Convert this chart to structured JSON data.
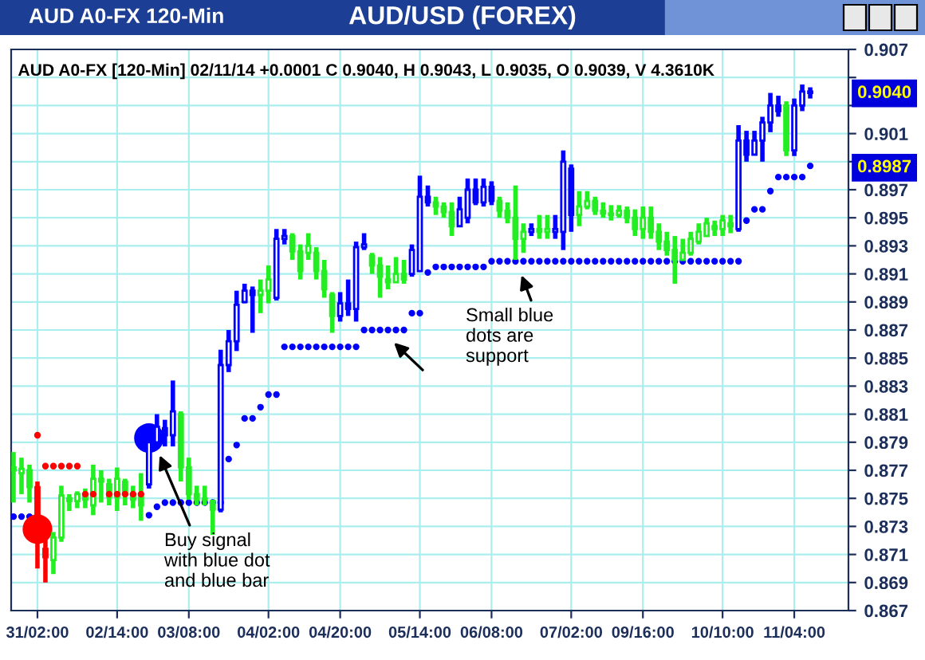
{
  "chart_data": {
    "type": "candlestick",
    "title": "AUD/USD (FOREX)",
    "subtitle": "AUD A0-FX 120-Min",
    "categories": [
      null,
      null,
      null,
      "31/02:00",
      null,
      null,
      null,
      null,
      null,
      null,
      null,
      null,
      null,
      "02/14:00",
      null,
      null,
      null,
      null,
      null,
      null,
      null,
      null,
      "03/08:00",
      null,
      null,
      null,
      null,
      null,
      null,
      null,
      null,
      null,
      "04/02:00",
      null,
      null,
      null,
      null,
      null,
      null,
      null,
      null,
      "04/20:00",
      null,
      null,
      null,
      null,
      null,
      null,
      null,
      null,
      null,
      "05/14:00",
      null,
      null,
      null,
      null,
      null,
      null,
      null,
      null,
      "06/08:00",
      null,
      null,
      null,
      null,
      null,
      null,
      null,
      null,
      null,
      "07/02:00",
      null,
      null,
      null,
      null,
      null,
      null,
      null,
      null,
      "09/16:00",
      null,
      null,
      null,
      null,
      null,
      null,
      null,
      null,
      null,
      "10/10:00",
      null,
      null,
      null,
      null,
      null,
      null,
      null,
      null,
      "11/04:00",
      null,
      null
    ],
    "ohlc": [
      [
        0.8772,
        0.8783,
        0.8747,
        0.877
      ],
      [
        0.8768,
        0.8779,
        0.8753,
        0.8771
      ],
      [
        0.877,
        0.8774,
        0.8747,
        0.8758
      ],
      [
        0.8758,
        0.8762,
        0.87,
        0.8728
      ],
      [
        0.8714,
        0.8721,
        0.869,
        0.8708
      ],
      [
        0.8706,
        0.8726,
        0.8696,
        0.8722
      ],
      [
        0.8722,
        0.8759,
        0.8719,
        0.8752
      ],
      [
        0.875,
        0.8753,
        0.8741,
        0.8748
      ],
      [
        0.8748,
        0.8755,
        0.8743,
        0.8753
      ],
      [
        0.8752,
        0.8757,
        0.8743,
        0.8749
      ],
      [
        0.8745,
        0.8774,
        0.8738,
        0.8764
      ],
      [
        0.8764,
        0.877,
        0.8747,
        0.8762
      ],
      [
        0.876,
        0.8764,
        0.8745,
        0.8751
      ],
      [
        0.8751,
        0.8772,
        0.8741,
        0.8764
      ],
      [
        0.8762,
        0.8764,
        0.8745,
        0.8753
      ],
      [
        0.8753,
        0.8759,
        0.8743,
        0.8749
      ],
      [
        0.8751,
        0.8768,
        0.8734,
        0.8745
      ],
      [
        0.876,
        0.8795,
        0.8757,
        0.879
      ],
      [
        0.879,
        0.881,
        0.8787,
        0.8801
      ],
      [
        0.88,
        0.8806,
        0.8787,
        0.8795
      ],
      [
        0.8795,
        0.8834,
        0.8787,
        0.8812
      ],
      [
        0.881,
        0.8812,
        0.8762,
        0.8772
      ],
      [
        0.8772,
        0.8779,
        0.8749,
        0.8753
      ],
      [
        0.8753,
        0.8759,
        0.8745,
        0.8749
      ],
      [
        0.8749,
        0.8759,
        0.8745,
        0.875
      ],
      [
        0.8748,
        0.8749,
        0.8724,
        0.8742
      ],
      [
        0.8742,
        0.8856,
        0.874,
        0.8845
      ],
      [
        0.8845,
        0.887,
        0.884,
        0.8862
      ],
      [
        0.8862,
        0.8898,
        0.8855,
        0.8888
      ],
      [
        0.889,
        0.8903,
        0.8889,
        0.8898
      ],
      [
        0.8898,
        0.8901,
        0.8868,
        0.8895
      ],
      [
        0.8895,
        0.8906,
        0.8882,
        0.8898
      ],
      [
        0.8898,
        0.8916,
        0.8889,
        0.8906
      ],
      [
        0.8893,
        0.8942,
        0.8891,
        0.8935
      ],
      [
        0.8935,
        0.8942,
        0.8931,
        0.8937
      ],
      [
        0.8937,
        0.8939,
        0.892,
        0.8926
      ],
      [
        0.8926,
        0.8931,
        0.8906,
        0.8912
      ],
      [
        0.8925,
        0.8939,
        0.892,
        0.893
      ],
      [
        0.8925,
        0.8929,
        0.8906,
        0.8912
      ],
      [
        0.8912,
        0.892,
        0.8893,
        0.8899
      ],
      [
        0.8895,
        0.8897,
        0.8868,
        0.888
      ],
      [
        0.888,
        0.8897,
        0.8876,
        0.8889
      ],
      [
        0.8889,
        0.8906,
        0.888,
        0.8885
      ],
      [
        0.8885,
        0.8933,
        0.8876,
        0.8929
      ],
      [
        0.8929,
        0.8939,
        0.8927,
        0.8931
      ],
      [
        0.8923,
        0.8925,
        0.891,
        0.8916
      ],
      [
        0.8916,
        0.8922,
        0.8893,
        0.8908
      ],
      [
        0.8906,
        0.8916,
        0.8899,
        0.8904
      ],
      [
        0.8904,
        0.8922,
        0.8904,
        0.891
      ],
      [
        0.891,
        0.892,
        0.8903,
        0.8906
      ],
      [
        0.891,
        0.8931,
        0.8908,
        0.8927
      ],
      [
        0.8912,
        0.898,
        0.8912,
        0.8965
      ],
      [
        0.8965,
        0.8973,
        0.8958,
        0.8961
      ],
      [
        0.8961,
        0.8965,
        0.8952,
        0.8958
      ],
      [
        0.8958,
        0.8961,
        0.895,
        0.8954
      ],
      [
        0.8954,
        0.8961,
        0.8937,
        0.8944
      ],
      [
        0.8944,
        0.8965,
        0.8944,
        0.8956
      ],
      [
        0.895,
        0.8978,
        0.8946,
        0.897
      ],
      [
        0.897,
        0.8978,
        0.8959,
        0.8961
      ],
      [
        0.8961,
        0.8978,
        0.8958,
        0.8972
      ],
      [
        0.8972,
        0.8976,
        0.8959,
        0.8962
      ],
      [
        0.8962,
        0.8965,
        0.895,
        0.8955
      ],
      [
        0.8955,
        0.8961,
        0.8946,
        0.895
      ],
      [
        0.895,
        0.8973,
        0.892,
        0.8935
      ],
      [
        0.8935,
        0.8946,
        0.8925,
        0.894
      ],
      [
        0.894,
        0.8946,
        0.8937,
        0.8942
      ],
      [
        0.8942,
        0.8952,
        0.8935,
        0.894
      ],
      [
        0.894,
        0.8952,
        0.8935,
        0.8942
      ],
      [
        0.894,
        0.8952,
        0.8935,
        0.8942
      ],
      [
        0.894,
        0.8998,
        0.8927,
        0.899
      ],
      [
        0.8985,
        0.8988,
        0.894,
        0.8952
      ],
      [
        0.8952,
        0.8969,
        0.8944,
        0.8958
      ],
      [
        0.8958,
        0.8969,
        0.8956,
        0.8962
      ],
      [
        0.8962,
        0.8965,
        0.8952,
        0.8955
      ],
      [
        0.8955,
        0.8961,
        0.895,
        0.8953
      ],
      [
        0.8953,
        0.8959,
        0.8948,
        0.8952
      ],
      [
        0.8952,
        0.8959,
        0.895,
        0.8955
      ],
      [
        0.8955,
        0.8958,
        0.8946,
        0.895
      ],
      [
        0.895,
        0.8956,
        0.8937,
        0.8942
      ],
      [
        0.8942,
        0.8958,
        0.8935,
        0.895
      ],
      [
        0.895,
        0.8958,
        0.8935,
        0.894
      ],
      [
        0.894,
        0.8946,
        0.8927,
        0.8933
      ],
      [
        0.8933,
        0.894,
        0.8923,
        0.8927
      ],
      [
        0.8927,
        0.8937,
        0.8903,
        0.892
      ],
      [
        0.892,
        0.8935,
        0.892,
        0.8925
      ],
      [
        0.8925,
        0.894,
        0.8923,
        0.8935
      ],
      [
        0.8933,
        0.8946,
        0.8931,
        0.894
      ],
      [
        0.8937,
        0.895,
        0.8937,
        0.8946
      ],
      [
        0.8944,
        0.8948,
        0.8937,
        0.8942
      ],
      [
        0.8942,
        0.8952,
        0.8937,
        0.8948
      ],
      [
        0.8946,
        0.8952,
        0.8939,
        0.8944
      ],
      [
        0.8942,
        0.9016,
        0.894,
        0.9005
      ],
      [
        0.9005,
        0.9012,
        0.899,
        0.8995
      ],
      [
        0.8995,
        0.9012,
        0.8995,
        0.9005
      ],
      [
        0.9005,
        0.9022,
        0.899,
        0.9018
      ],
      [
        0.9018,
        0.9039,
        0.9011,
        0.903
      ],
      [
        0.903,
        0.9037,
        0.9022,
        0.9026
      ],
      [
        0.903,
        0.9033,
        0.8994,
        0.8998
      ],
      [
        0.8998,
        0.9035,
        0.8994,
        0.903
      ],
      [
        0.903,
        0.9045,
        0.9026,
        0.904
      ],
      [
        0.9039,
        0.9043,
        0.9035,
        0.904
      ]
    ],
    "colors": [
      "#22ee22",
      "#22ee22",
      "#22ee22",
      "#ff0000",
      "#ff0000",
      "#22ee22",
      "#22ee22",
      "#22ee22",
      "#22ee22",
      "#22ee22",
      "#22ee22",
      "#22ee22",
      "#22ee22",
      "#22ee22",
      "#22ee22",
      "#22ee22",
      "#22ee22",
      "#0000ff",
      "#0000ff",
      "#0000ff",
      "#0000ff",
      "#22ee22",
      "#22ee22",
      "#22ee22",
      "#22ee22",
      "#22ee22",
      "#0000ff",
      "#0000ff",
      "#0000ff",
      "#0000ff",
      "#0000ff",
      "#22ee22",
      "#22ee22",
      "#0000ff",
      "#0000ff",
      "#22ee22",
      "#22ee22",
      "#22ee22",
      "#22ee22",
      "#22ee22",
      "#22ee22",
      "#0000ff",
      "#0000ff",
      "#0000ff",
      "#0000ff",
      "#22ee22",
      "#22ee22",
      "#22ee22",
      "#22ee22",
      "#22ee22",
      "#0000ff",
      "#0000ff",
      "#0000ff",
      "#22ee22",
      "#22ee22",
      "#22ee22",
      "#0000ff",
      "#0000ff",
      "#0000ff",
      "#0000ff",
      "#0000ff",
      "#22ee22",
      "#22ee22",
      "#22ee22",
      "#22ee22",
      "#0000ff",
      "#22ee22",
      "#22ee22",
      "#0000ff",
      "#0000ff",
      "#0000ff",
      "#22ee22",
      "#22ee22",
      "#22ee22",
      "#22ee22",
      "#22ee22",
      "#22ee22",
      "#22ee22",
      "#22ee22",
      "#22ee22",
      "#22ee22",
      "#22ee22",
      "#22ee22",
      "#22ee22",
      "#22ee22",
      "#22ee22",
      "#22ee22",
      "#22ee22",
      "#22ee22",
      "#22ee22",
      "#22ee22",
      "#0000ff",
      "#0000ff",
      "#0000ff",
      "#0000ff",
      "#0000ff",
      "#0000ff",
      "#22ee22",
      "#0000ff",
      "#0000ff",
      "#0000ff"
    ],
    "series": [
      {
        "type": "scatter",
        "color": "#ff0000",
        "values": [
          null,
          null,
          null,
          0.8795,
          0.8773,
          0.8773,
          0.8773,
          0.8773,
          0.8773,
          0.8753,
          0.8753,
          null,
          0.8753,
          0.8753,
          0.8753,
          0.8753,
          0.8753,
          null,
          null,
          null,
          null,
          null,
          null,
          null,
          null,
          null,
          null,
          null,
          null,
          null,
          null,
          null,
          null,
          null,
          null,
          null,
          null,
          null,
          null,
          null,
          null,
          null,
          null,
          null,
          null,
          null,
          null,
          null,
          null,
          null,
          null,
          null,
          null,
          null,
          null,
          null,
          null,
          null,
          null,
          null,
          null,
          null,
          null,
          null,
          null,
          null,
          null,
          null,
          null,
          null,
          null,
          null,
          null,
          null,
          null,
          null,
          null,
          null,
          null,
          null,
          null,
          null,
          null,
          null,
          null,
          null,
          null,
          null,
          null,
          null,
          null,
          null,
          null,
          null,
          null,
          null,
          null,
          null,
          null,
          null,
          null
        ]
      },
      {
        "type": "scatter",
        "color": "#0000ff",
        "values": [
          0.8737,
          0.8737,
          0.8737,
          null,
          null,
          null,
          null,
          null,
          null,
          null,
          null,
          null,
          null,
          null,
          null,
          null,
          null,
          0.8738,
          0.8744,
          0.8747,
          0.8747,
          0.8747,
          0.8747,
          0.8747,
          0.8747,
          0.8747,
          0.8747,
          0.8778,
          0.8788,
          0.8807,
          0.8807,
          0.8815,
          0.8824,
          0.8824,
          0.8858,
          0.8858,
          0.8858,
          0.8858,
          0.8858,
          0.8858,
          0.8858,
          0.8858,
          0.8858,
          0.8858,
          0.887,
          0.887,
          0.887,
          0.887,
          0.887,
          0.887,
          0.8882,
          0.8882,
          0.8911,
          0.8915,
          0.8915,
          0.8915,
          0.8915,
          0.8915,
          0.8915,
          0.8915,
          0.8919,
          0.8919,
          0.8919,
          0.8919,
          0.8919,
          0.8919,
          0.8919,
          0.8919,
          0.8919,
          0.8919,
          0.8919,
          0.8919,
          0.8919,
          0.8919,
          0.8919,
          0.8919,
          0.8919,
          0.8919,
          0.8919,
          0.8919,
          0.8919,
          0.8919,
          0.8919,
          0.8919,
          0.8919,
          0.8919,
          0.8919,
          0.8919,
          0.8919,
          0.8919,
          0.8919,
          0.8919,
          0.8948,
          0.8956,
          0.8956,
          0.8969,
          0.8979,
          0.8979,
          0.8979,
          0.8979,
          0.8987
        ]
      },
      {
        "type": "bubble",
        "color": "#ff0000",
        "values": [
          null,
          null,
          null,
          0.8728,
          null,
          null,
          null,
          null,
          null,
          null,
          null,
          null,
          null,
          null,
          null,
          null,
          null,
          null,
          null,
          null,
          null,
          null,
          null,
          null,
          null,
          null,
          null,
          null,
          null,
          null,
          null,
          null,
          null,
          null,
          null,
          null,
          null,
          null,
          null,
          null,
          null,
          null,
          null,
          null,
          null,
          null,
          null,
          null,
          null,
          null,
          null,
          null,
          null,
          null,
          null,
          null,
          null,
          null,
          null,
          null,
          null,
          null,
          null,
          null,
          null,
          null,
          null,
          null,
          null,
          null,
          null,
          null,
          null,
          null,
          null,
          null,
          null,
          null,
          null,
          null,
          null,
          null,
          null,
          null,
          null,
          null,
          null,
          null,
          null,
          null,
          null,
          null,
          null,
          null,
          null,
          null,
          null,
          null,
          null,
          null,
          null
        ],
        "sizes": [
          null,
          null,
          null,
          1,
          null,
          null,
          null,
          null,
          null,
          null,
          null,
          null,
          null,
          null,
          null,
          null,
          null,
          null,
          null,
          null,
          null,
          null,
          null,
          null,
          null,
          null,
          null,
          null,
          null,
          null,
          null,
          null,
          null,
          null,
          null,
          null,
          null,
          null,
          null,
          null,
          null,
          null,
          null,
          null,
          null,
          null,
          null,
          null,
          null,
          null,
          null,
          null,
          null,
          null,
          null,
          null,
          null,
          null,
          null,
          null,
          null,
          null,
          null,
          null,
          null,
          null,
          null,
          null,
          null,
          null,
          null,
          null,
          null,
          null,
          null,
          null,
          null,
          null,
          null,
          null,
          null,
          null,
          null,
          null,
          null,
          null,
          null,
          null,
          null,
          null,
          null,
          null,
          null,
          null,
          null,
          null,
          null,
          null,
          null,
          null,
          null
        ]
      },
      {
        "type": "bubble",
        "color": "#0000ff",
        "values": [
          null,
          null,
          null,
          null,
          null,
          null,
          null,
          null,
          null,
          null,
          null,
          null,
          null,
          null,
          null,
          null,
          null,
          0.8793,
          null,
          null,
          null,
          null,
          null,
          null,
          null,
          null,
          null,
          null,
          null,
          null,
          null,
          null,
          null,
          null,
          null,
          null,
          null,
          null,
          null,
          null,
          null,
          null,
          null,
          null,
          null,
          null,
          null,
          null,
          null,
          null,
          null,
          null,
          null,
          null,
          null,
          null,
          null,
          null,
          null,
          null,
          null,
          null,
          null,
          null,
          null,
          null,
          null,
          null,
          null,
          null,
          null,
          null,
          null,
          null,
          null,
          null,
          null,
          null,
          null,
          null,
          null,
          null,
          null,
          null,
          null,
          null,
          null,
          null,
          null,
          null,
          null,
          null,
          null,
          null,
          null,
          null,
          null,
          null,
          null,
          null,
          null
        ],
        "sizes": [
          null,
          null,
          null,
          null,
          null,
          null,
          null,
          null,
          null,
          null,
          null,
          null,
          null,
          null,
          null,
          null,
          null,
          1,
          null,
          null,
          null,
          null,
          null,
          null,
          null,
          null,
          null,
          null,
          null,
          null,
          null,
          null,
          null,
          null,
          null,
          null,
          null,
          null,
          null,
          null,
          null,
          null,
          null,
          null,
          null,
          null,
          null,
          null,
          null,
          null,
          null,
          null,
          null,
          null,
          null,
          null,
          null,
          null,
          null,
          null,
          null,
          null,
          null,
          null,
          null,
          null,
          null,
          null,
          null,
          null,
          null,
          null,
          null,
          null,
          null,
          null,
          null,
          null,
          null,
          null,
          null,
          null,
          null,
          null,
          null,
          null,
          null,
          null,
          null,
          null,
          null,
          null,
          null,
          null,
          null,
          null,
          null,
          null,
          null,
          null,
          null
        ]
      }
    ],
    "ylim": [
      0.867,
      0.907
    ],
    "yticks": [
      0.867,
      0.869,
      0.871,
      0.873,
      0.875,
      0.877,
      0.879,
      0.881,
      0.883,
      0.885,
      0.887,
      0.889,
      0.891,
      0.893,
      0.895,
      0.897,
      {
        "value": 0.899,
        "label": null
      },
      0.901,
      {
        "value": 0.903,
        "label": null
      },
      {
        "value": 0.905,
        "label": null
      },
      0.907
    ],
    "y2lim": [
      0.867,
      0.907
    ],
    "y2ticks": [
      {
        "value": 0.904,
        "label": "0.9040"
      },
      {
        "value": 0.8987,
        "label": "0.8987"
      }
    ],
    "grid": true,
    "annotations": [
      "AUD A0-FX [120-Min] 02/11/14 +0.0001 C 0.9040, H 0.9043, L 0.9035, O 0.9039, V 4.3610K",
      "Buy signal\nwith blue dot\nand blue bar",
      "Small blue\ndots are\nsupport"
    ]
  }
}
